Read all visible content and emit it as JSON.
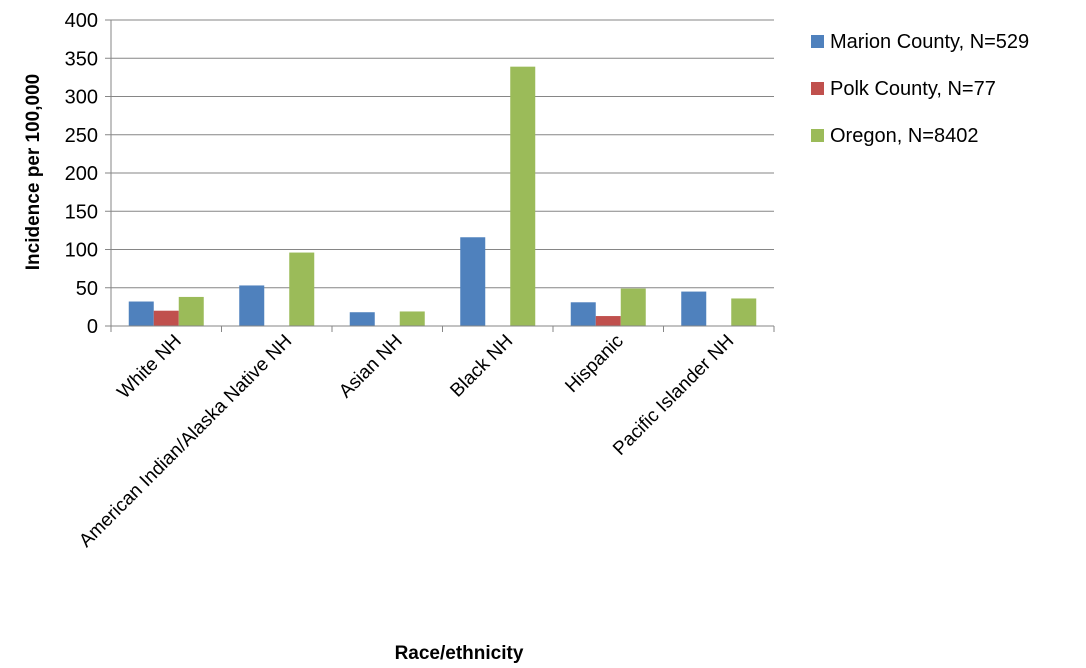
{
  "chart_data": {
    "type": "bar",
    "categories": [
      "White NH",
      "American Indian/Alaska Native NH",
      "Asian NH",
      "Black NH",
      "Hispanic",
      "Pacific Islander NH"
    ],
    "series": [
      {
        "name": "Marion County, N=529",
        "color": "#4f81bd",
        "values": [
          32,
          53,
          18,
          116,
          31,
          45
        ]
      },
      {
        "name": "Polk County, N=77",
        "color": "#c0504d",
        "values": [
          20,
          0,
          0,
          0,
          13,
          0
        ]
      },
      {
        "name": "Oregon, N=8402",
        "color": "#9bbb59",
        "values": [
          38,
          96,
          19,
          339,
          49,
          36
        ]
      }
    ],
    "xlabel": "Race/ethnicity",
    "ylabel": "Incidence per 100,000",
    "ylim": [
      0,
      400
    ],
    "yticks": [
      0,
      50,
      100,
      150,
      200,
      250,
      300,
      350,
      400
    ],
    "grid": true,
    "legend_position": "right"
  }
}
